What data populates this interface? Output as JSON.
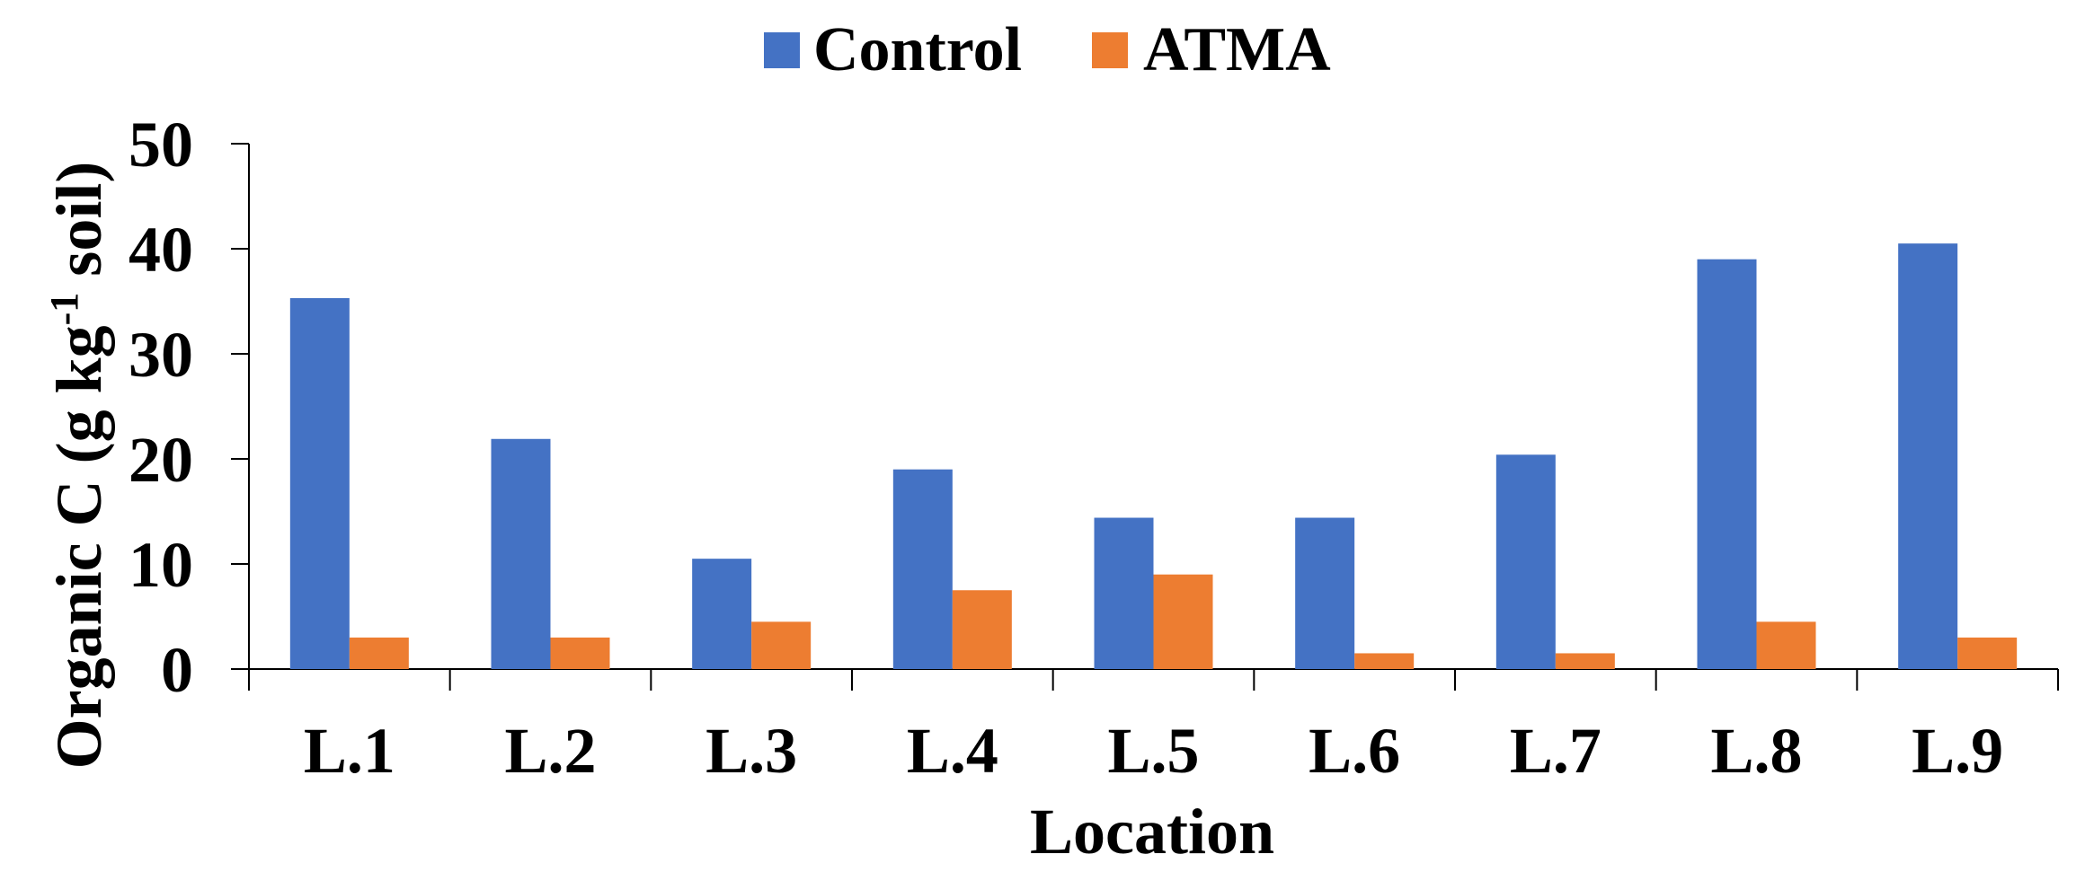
{
  "chart_data": {
    "type": "bar",
    "xlabel": "Location",
    "ylabel_main": "Organic C (g kg",
    "ylabel_sup": "-1",
    "ylabel_tail": " soil)",
    "ylim": [
      0,
      50
    ],
    "yticks": [
      "0",
      "10",
      "20",
      "30",
      "40",
      "50"
    ],
    "grid": false,
    "legend_position": "top-center",
    "categories": [
      "L.1",
      "L.2",
      "L.3",
      "L.4",
      "L.5",
      "L.6",
      "L.7",
      "L.8",
      "L.9"
    ],
    "series": [
      {
        "name": "Control",
        "color": "#4472C4",
        "values": [
          35.3,
          21.9,
          10.5,
          19.0,
          14.4,
          14.4,
          20.4,
          39.0,
          40.5
        ]
      },
      {
        "name": "ATMA",
        "color": "#ED7D31",
        "values": [
          3.0,
          3.0,
          4.5,
          7.5,
          9.0,
          1.5,
          1.5,
          4.5,
          3.0
        ]
      }
    ]
  }
}
